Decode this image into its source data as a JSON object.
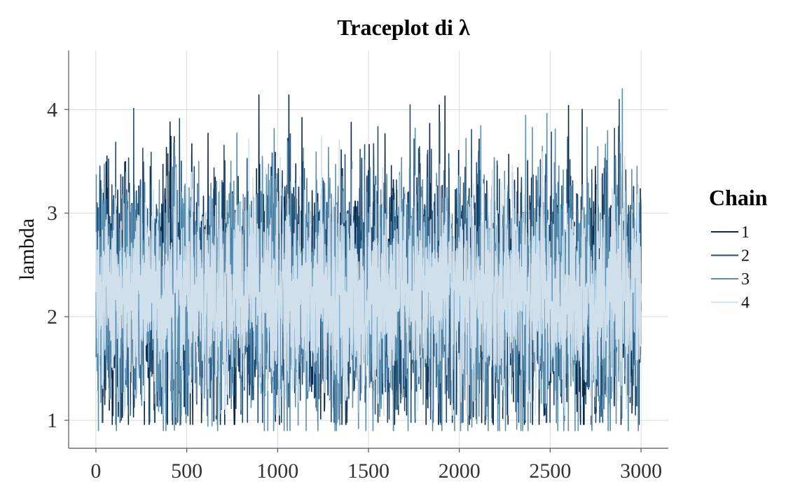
{
  "chart_data": {
    "type": "line",
    "title": "Traceplot di λ",
    "xlabel": "",
    "ylabel": "lambda",
    "xlim": [
      -150,
      3150
    ],
    "ylim": [
      0.73,
      4.57
    ],
    "x_ticks": [
      0,
      500,
      1000,
      1500,
      2000,
      2500,
      3000
    ],
    "x_tick_labels": [
      "0",
      "500",
      "1000",
      "1500",
      "2000",
      "2500",
      "3000"
    ],
    "y_ticks": [
      1,
      2,
      3,
      4
    ],
    "y_tick_labels": [
      "1",
      "2",
      "3",
      "4"
    ],
    "grid": true,
    "legend": {
      "title": "Chain",
      "position": "right"
    },
    "iterations": [
      1,
      3000
    ],
    "series": [
      {
        "name": "1",
        "color": "#0b2a4a",
        "mean": 2.2,
        "sd": 0.55,
        "min": 0.96,
        "max": 4.14,
        "seed": 11
      },
      {
        "name": "2",
        "color": "#1f4e79",
        "mean": 2.2,
        "sd": 0.55,
        "min": 0.98,
        "max": 4.1,
        "seed": 23
      },
      {
        "name": "3",
        "color": "#5b8fb0",
        "mean": 2.2,
        "sd": 0.55,
        "min": 0.9,
        "max": 4.4,
        "seed": 37
      },
      {
        "name": "4",
        "color": "#cfe0ec",
        "mean": 2.2,
        "sd": 0.45,
        "min": 1.05,
        "max": 3.75,
        "seed": 53
      }
    ]
  }
}
